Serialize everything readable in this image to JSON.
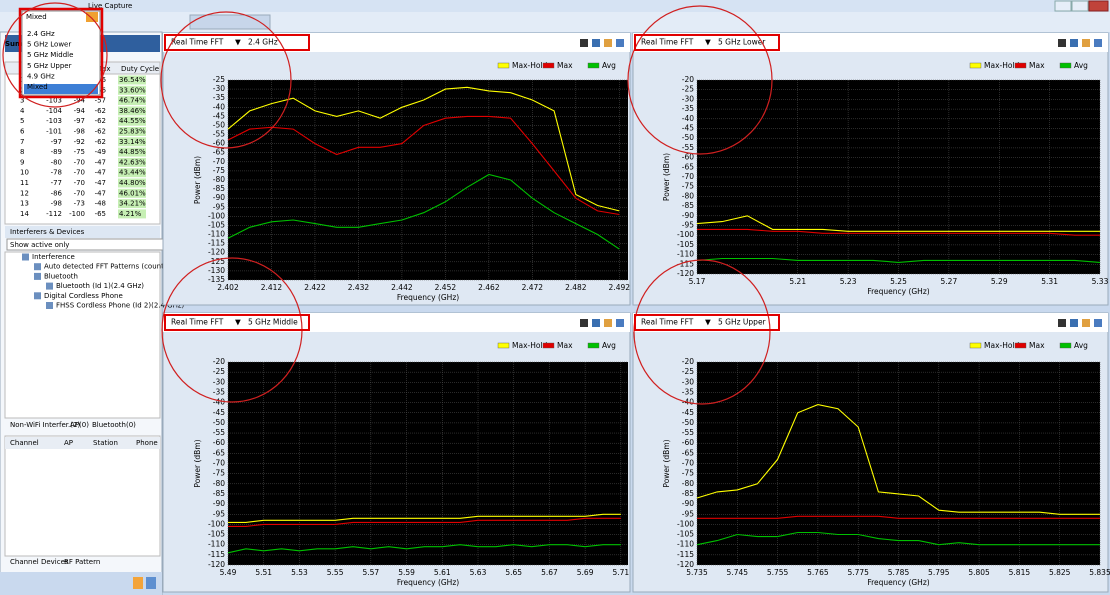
{
  "window": {
    "title": "Live Capture",
    "band_select": "Mixed",
    "band_options": [
      "2.4 GHz",
      "5 GHz Lower",
      "5 GHz Middle",
      "5 GHz Upper",
      "4.9 GHz",
      "Mixed"
    ]
  },
  "summary": {
    "title": "Summary",
    "columns": {
      "max": "Max",
      "duty": "Duty Cycle"
    },
    "rows": [
      {
        "id": "1",
        "max": "-56",
        "duty": "36.54%"
      },
      {
        "id": "2",
        "a": "-104",
        "b": "-94",
        "max": "-56",
        "duty": "33.60%"
      },
      {
        "id": "3",
        "a": "-103",
        "b": "-94",
        "max": "-57",
        "duty": "46.74%"
      },
      {
        "id": "4",
        "a": "-104",
        "b": "-94",
        "max": "-62",
        "duty": "38.46%"
      },
      {
        "id": "5",
        "a": "-103",
        "b": "-97",
        "max": "-62",
        "duty": "44.55%"
      },
      {
        "id": "6",
        "a": "-101",
        "b": "-98",
        "max": "-62",
        "duty": "25.83%"
      },
      {
        "id": "7",
        "a": "-97",
        "b": "-92",
        "max": "-62",
        "duty": "33.14%"
      },
      {
        "id": "8",
        "a": "-89",
        "b": "-75",
        "max": "-49",
        "duty": "44.85%"
      },
      {
        "id": "9",
        "a": "-80",
        "b": "-70",
        "max": "-47",
        "duty": "42.63%"
      },
      {
        "id": "10",
        "a": "-78",
        "b": "-70",
        "max": "-47",
        "duty": "43.44%"
      },
      {
        "id": "11",
        "a": "-77",
        "b": "-70",
        "max": "-47",
        "duty": "44.80%"
      },
      {
        "id": "12",
        "a": "-86",
        "b": "-70",
        "max": "-47",
        "duty": "46.01%"
      },
      {
        "id": "13",
        "a": "-98",
        "b": "-73",
        "max": "-48",
        "duty": "34.21%"
      },
      {
        "id": "14",
        "a": "-112",
        "b": "-100",
        "max": "-65",
        "duty": "4.21%"
      }
    ]
  },
  "interferers": {
    "title": "Interferers & Devices",
    "filter": "Show active only",
    "tree": [
      {
        "label": "Interference",
        "children": [
          {
            "label": "Auto detected FFT Patterns (count: 5)"
          },
          {
            "label": "Bluetooth",
            "children": [
              {
                "label": "Bluetooth (Id 1)(2.4 GHz)"
              }
            ]
          },
          {
            "label": "Digital Cordless Phone",
            "children": [
              {
                "label": "FHSS Cordless Phone (Id 2)(2.4 GHz)"
              }
            ]
          }
        ]
      }
    ]
  },
  "device_tabs": [
    "Non-WiFi Interfer.(2)",
    "AP(0)",
    "Bluetooth(0)"
  ],
  "channel_columns": [
    "Channel",
    "AP",
    "Station",
    "Phone"
  ],
  "bottom_tabs": [
    "Channel Devices",
    "RF Pattern"
  ],
  "panels": [
    {
      "type": "line",
      "mode": "Real Time FFT",
      "band": "2.4 GHz",
      "y_label": "Power (dBm)",
      "x_label": "Frequency (GHz)",
      "xlim": [
        2.402,
        2.494
      ],
      "ylim": [
        -135,
        -25
      ],
      "xticks": [
        2.402,
        2.412,
        2.422,
        2.432,
        2.442,
        2.452,
        2.462,
        2.472,
        2.482,
        2.492
      ],
      "yticks": [
        -25,
        -30,
        -35,
        -40,
        -45,
        -50,
        -55,
        -60,
        -65,
        -70,
        -75,
        -80,
        -85,
        -90,
        -95,
        -100,
        -105,
        -110,
        -115,
        -120,
        -125,
        -130,
        -135
      ],
      "x": [
        2.402,
        2.407,
        2.412,
        2.417,
        2.422,
        2.427,
        2.432,
        2.437,
        2.442,
        2.447,
        2.452,
        2.457,
        2.462,
        2.467,
        2.472,
        2.477,
        2.482,
        2.487,
        2.492
      ],
      "series": [
        {
          "name": "Max-Hold",
          "color": "#ffff00",
          "values": [
            -52,
            -42,
            -38,
            -35,
            -42,
            -45,
            -42,
            -46,
            -40,
            -36,
            -30,
            -29,
            -31,
            -32,
            -36,
            -42,
            -88,
            -94,
            -97
          ]
        },
        {
          "name": "Max",
          "color": "#e00000",
          "values": [
            -58,
            -52,
            -51,
            -52,
            -60,
            -66,
            -62,
            -62,
            -60,
            -50,
            -46,
            -45,
            -45,
            -46,
            -60,
            -75,
            -90,
            -97,
            -99
          ]
        },
        {
          "name": "Avg",
          "color": "#00c000",
          "values": [
            -112,
            -106,
            -103,
            -102,
            -104,
            -106,
            -106,
            -104,
            -102,
            -98,
            -92,
            -84,
            -77,
            -80,
            -90,
            -98,
            -104,
            -110,
            -118
          ]
        }
      ]
    },
    {
      "type": "line",
      "mode": "Real Time FFT",
      "band": "5 GHz Lower",
      "y_label": "Power (dBm)",
      "x_label": "Frequency (GHz)",
      "xlim": [
        5.17,
        5.33
      ],
      "ylim": [
        -120,
        -20
      ],
      "xticks": [
        5.17,
        5.21,
        5.23,
        5.25,
        5.27,
        5.29,
        5.31,
        5.33
      ],
      "yticks": [
        -20,
        -25,
        -30,
        -35,
        -40,
        -45,
        -50,
        -55,
        -60,
        -65,
        -70,
        -75,
        -80,
        -85,
        -90,
        -95,
        -100,
        -105,
        -110,
        -115,
        -120
      ],
      "x": [
        5.17,
        5.18,
        5.19,
        5.2,
        5.21,
        5.22,
        5.23,
        5.24,
        5.25,
        5.26,
        5.27,
        5.28,
        5.29,
        5.3,
        5.31,
        5.32,
        5.33
      ],
      "series": [
        {
          "name": "Max-Hold",
          "color": "#ffff00",
          "values": [
            -94,
            -93,
            -90,
            -97,
            -97,
            -97,
            -98,
            -98,
            -98,
            -98,
            -98,
            -98,
            -98,
            -98,
            -98,
            -98,
            -98
          ]
        },
        {
          "name": "Max",
          "color": "#e00000",
          "values": [
            -97,
            -97,
            -97,
            -98,
            -98,
            -99,
            -99,
            -99,
            -99,
            -99,
            -99,
            -99,
            -99,
            -99,
            -99,
            -100,
            -100
          ]
        },
        {
          "name": "Avg",
          "color": "#00c000",
          "values": [
            -113,
            -112,
            -112,
            -112,
            -113,
            -113,
            -113,
            -113,
            -114,
            -113,
            -113,
            -113,
            -113,
            -113,
            -113,
            -113,
            -114
          ]
        }
      ]
    },
    {
      "type": "line",
      "mode": "Real Time FFT",
      "band": "5 GHz Middle",
      "y_label": "Power (dBm)",
      "x_label": "Frequency (GHz)",
      "xlim": [
        5.49,
        5.714
      ],
      "ylim": [
        -120,
        -20
      ],
      "xticks": [
        5.49,
        5.51,
        5.53,
        5.55,
        5.57,
        5.59,
        5.61,
        5.63,
        5.65,
        5.67,
        5.69,
        5.71
      ],
      "yticks": [
        -20,
        -25,
        -30,
        -35,
        -40,
        -45,
        -50,
        -55,
        -60,
        -65,
        -70,
        -75,
        -80,
        -85,
        -90,
        -95,
        -100,
        -105,
        -110,
        -115,
        -120
      ],
      "x": [
        5.49,
        5.5,
        5.51,
        5.52,
        5.53,
        5.54,
        5.55,
        5.56,
        5.57,
        5.58,
        5.59,
        5.6,
        5.61,
        5.62,
        5.63,
        5.64,
        5.65,
        5.66,
        5.67,
        5.68,
        5.69,
        5.7,
        5.71
      ],
      "series": [
        {
          "name": "Max-Hold",
          "color": "#ffff00",
          "values": [
            -99,
            -99,
            -98,
            -98,
            -98,
            -98,
            -98,
            -97,
            -97,
            -97,
            -97,
            -97,
            -97,
            -97,
            -96,
            -96,
            -96,
            -96,
            -96,
            -96,
            -96,
            -95,
            -95
          ]
        },
        {
          "name": "Max",
          "color": "#e00000",
          "values": [
            -101,
            -101,
            -100,
            -100,
            -100,
            -100,
            -100,
            -99,
            -99,
            -99,
            -99,
            -99,
            -99,
            -99,
            -98,
            -98,
            -98,
            -98,
            -98,
            -98,
            -97,
            -97,
            -97
          ]
        },
        {
          "name": "Avg",
          "color": "#00c000",
          "values": [
            -114,
            -112,
            -113,
            -112,
            -113,
            -112,
            -112,
            -111,
            -112,
            -111,
            -112,
            -111,
            -111,
            -110,
            -111,
            -111,
            -110,
            -111,
            -110,
            -110,
            -111,
            -110,
            -110
          ]
        }
      ]
    },
    {
      "type": "line",
      "mode": "Real Time FFT",
      "band": "5 GHz Upper",
      "y_label": "Power (dBm)",
      "x_label": "Frequency (GHz)",
      "xlim": [
        5.735,
        5.835
      ],
      "ylim": [
        -120,
        -20
      ],
      "xticks": [
        5.735,
        5.745,
        5.755,
        5.765,
        5.775,
        5.785,
        5.795,
        5.805,
        5.815,
        5.825,
        5.835
      ],
      "yticks": [
        -20,
        -25,
        -30,
        -35,
        -40,
        -45,
        -50,
        -55,
        -60,
        -65,
        -70,
        -75,
        -80,
        -85,
        -90,
        -95,
        -100,
        -105,
        -110,
        -115,
        -120
      ],
      "x": [
        5.735,
        5.74,
        5.745,
        5.75,
        5.755,
        5.76,
        5.765,
        5.77,
        5.775,
        5.78,
        5.785,
        5.79,
        5.795,
        5.8,
        5.805,
        5.81,
        5.815,
        5.82,
        5.825,
        5.83,
        5.835
      ],
      "series": [
        {
          "name": "Max-Hold",
          "color": "#ffff00",
          "values": [
            -87,
            -84,
            -83,
            -80,
            -68,
            -45,
            -41,
            -43,
            -52,
            -84,
            -85,
            -86,
            -93,
            -94,
            -94,
            -94,
            -94,
            -94,
            -95,
            -95,
            -95
          ]
        },
        {
          "name": "Max",
          "color": "#e00000",
          "values": [
            -97,
            -97,
            -97,
            -97,
            -97,
            -96,
            -96,
            -96,
            -96,
            -96,
            -97,
            -97,
            -97,
            -97,
            -97,
            -97,
            -97,
            -97,
            -97,
            -97,
            -97
          ]
        },
        {
          "name": "Avg",
          "color": "#00c000",
          "values": [
            -110,
            -108,
            -105,
            -106,
            -106,
            -104,
            -104,
            -105,
            -105,
            -107,
            -108,
            -108,
            -110,
            -109,
            -110,
            -110,
            -110,
            -110,
            -110,
            -110,
            -110
          ]
        }
      ]
    }
  ]
}
